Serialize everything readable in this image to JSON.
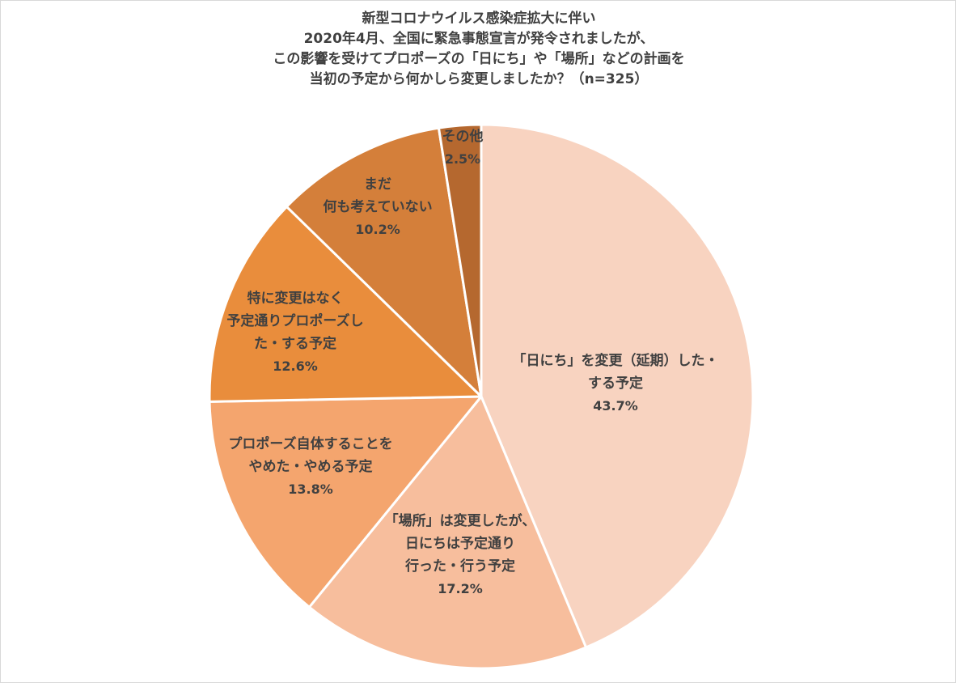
{
  "chart_data": {
    "type": "pie",
    "title_lines": [
      "新型コロナウイルス感染症拡大に伴い",
      "2020年4月、全国に緊急事態宣言が発令されましたが、",
      "この影響を受けてプロポーズの「日にち」や「場所」などの計画を",
      "当初の予定から何かしら変更しましたか？（n=325）"
    ],
    "start_angle_deg": 0,
    "direction": "clockwise",
    "slices": [
      {
        "label_lines": [
          "「日にち」を変更（延期）した・",
          "する予定"
        ],
        "value": 43.7,
        "value_label": "43.7%",
        "color": "#f8d3c0"
      },
      {
        "label_lines": [
          "「場所」は変更したが、",
          "日にちは予定通り",
          "行った・行う予定"
        ],
        "value": 17.2,
        "value_label": "17.2%",
        "color": "#f7be9d"
      },
      {
        "label_lines": [
          "プロポーズ自体することを",
          "やめた・やめる予定"
        ],
        "value": 13.8,
        "value_label": "13.8%",
        "color": "#f4a56e"
      },
      {
        "label_lines": [
          "特に変更はなく",
          "予定通りプロポーズし",
          "た・する予定"
        ],
        "value": 12.6,
        "value_label": "12.6%",
        "color": "#e98d3c"
      },
      {
        "label_lines": [
          "まだ",
          "何も考えていない"
        ],
        "value": 10.2,
        "value_label": "10.2%",
        "color": "#d47f3a"
      },
      {
        "label_lines": [
          "その他"
        ],
        "value": 2.5,
        "value_label": "2.5%",
        "color": "#b5682f"
      }
    ]
  }
}
